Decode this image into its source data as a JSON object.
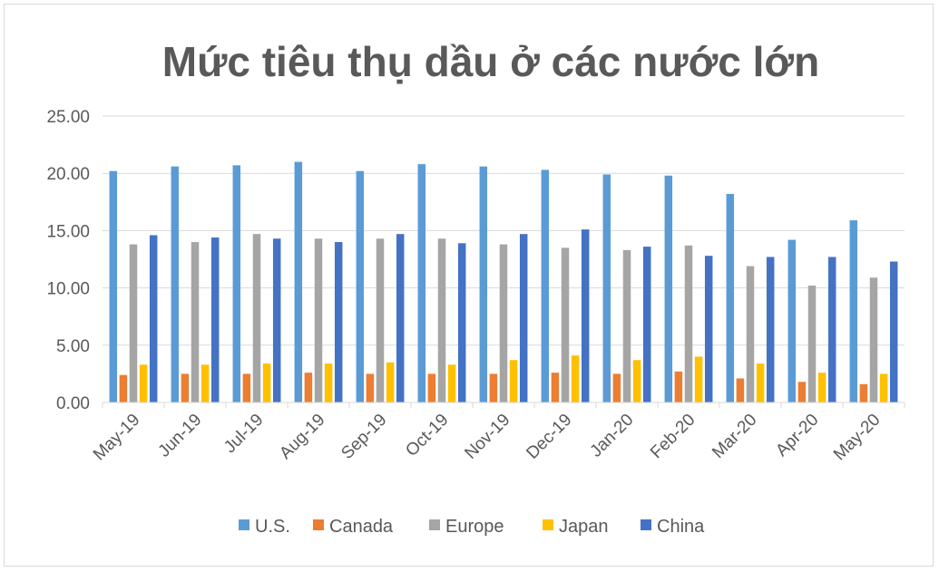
{
  "chart_data": {
    "type": "bar",
    "title": "Mức tiêu thụ dầu ở các nước lớn",
    "xlabel": "",
    "ylabel": "",
    "ylim": [
      0,
      25
    ],
    "yticks": [
      "0.00",
      "5.00",
      "10.00",
      "15.00",
      "20.00",
      "25.00"
    ],
    "grid": true,
    "legend_position": "bottom",
    "categories": [
      "May-19",
      "Jun-19",
      "Jul-19",
      "Aug-19",
      "Sep-19",
      "Oct-19",
      "Nov-19",
      "Dec-19",
      "Jan-20",
      "Feb-20",
      "Mar-20",
      "Apr-20",
      "May-20"
    ],
    "series": [
      {
        "name": "U.S.",
        "color": "#5b9bd5",
        "values": [
          20.2,
          20.6,
          20.7,
          21.0,
          20.2,
          20.8,
          20.6,
          20.3,
          19.9,
          19.8,
          18.2,
          14.2,
          15.9
        ]
      },
      {
        "name": "Canada",
        "color": "#ed7d31",
        "values": [
          2.4,
          2.5,
          2.5,
          2.6,
          2.5,
          2.5,
          2.5,
          2.6,
          2.5,
          2.7,
          2.1,
          1.8,
          1.6
        ]
      },
      {
        "name": "Europe",
        "color": "#a5a5a5",
        "values": [
          13.8,
          14.0,
          14.7,
          14.3,
          14.3,
          14.3,
          13.8,
          13.5,
          13.3,
          13.7,
          11.9,
          10.2,
          10.9
        ]
      },
      {
        "name": "Japan",
        "color": "#ffc000",
        "values": [
          3.3,
          3.3,
          3.4,
          3.4,
          3.5,
          3.3,
          3.7,
          4.1,
          3.7,
          4.0,
          3.4,
          2.6,
          2.5
        ]
      },
      {
        "name": "China",
        "color": "#4472c4",
        "values": [
          14.6,
          14.4,
          14.3,
          14.0,
          14.7,
          13.9,
          14.7,
          15.1,
          13.6,
          12.8,
          12.7,
          12.7,
          12.3
        ]
      }
    ]
  }
}
